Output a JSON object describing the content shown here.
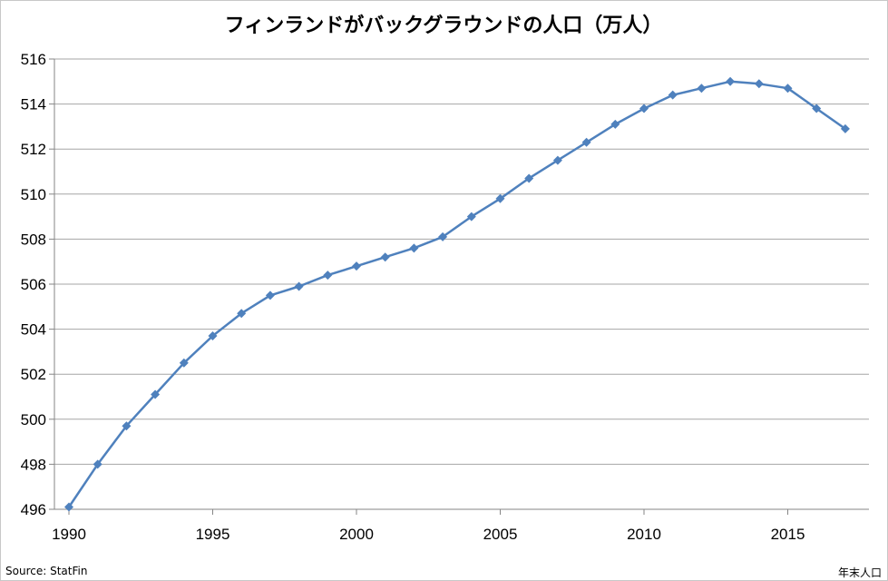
{
  "chart_data": {
    "type": "line",
    "title": "フィンランドがバックグラウンドの人口（万人）",
    "xlabel": "",
    "ylabel": "",
    "xlim": [
      1990,
      2017.5
    ],
    "ylim": [
      496,
      516
    ],
    "x_ticks": [
      1990,
      1995,
      2000,
      2005,
      2010,
      2015
    ],
    "y_ticks": [
      496,
      498,
      500,
      502,
      504,
      506,
      508,
      510,
      512,
      514,
      516
    ],
    "grid": true,
    "legend": "none",
    "source_note": "Source: StatFin",
    "corner_note": "年末人口",
    "series": [
      {
        "color": "#4f81bd",
        "marker": "diamond",
        "x": [
          1990,
          1991,
          1992,
          1993,
          1994,
          1995,
          1996,
          1997,
          1998,
          1999,
          2000,
          2001,
          2002,
          2003,
          2004,
          2005,
          2006,
          2007,
          2008,
          2009,
          2010,
          2011,
          2012,
          2013,
          2014,
          2015,
          2016,
          2017
        ],
        "values": [
          496.1,
          498.0,
          499.7,
          501.1,
          502.5,
          503.7,
          504.7,
          505.5,
          505.9,
          506.4,
          506.8,
          507.2,
          507.6,
          508.1,
          509.0,
          509.8,
          510.7,
          511.5,
          512.3,
          513.1,
          513.8,
          514.4,
          514.7,
          515.0,
          514.9,
          514.7,
          513.8,
          512.9
        ]
      }
    ]
  }
}
